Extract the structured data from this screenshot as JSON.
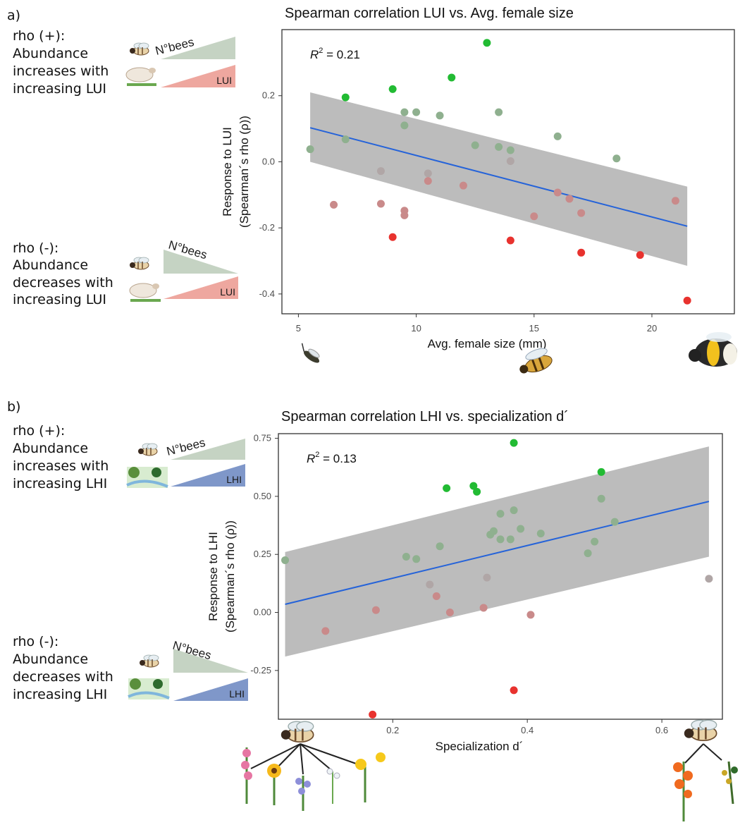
{
  "panel_labels": [
    "a)",
    "b)"
  ],
  "legends": {
    "a": {
      "pos": {
        "head": "rho (+):",
        "lines": [
          "Abundance",
          "increases with",
          "increasing LUI"
        ]
      },
      "neg": {
        "head": "rho (-):",
        "lines": [
          "Abundance",
          "decreases with",
          "increasing LUI"
        ]
      },
      "bees_label": "N°bees",
      "driver_label": "LUI"
    },
    "b": {
      "pos": {
        "head": "rho (+):",
        "lines": [
          "Abundance",
          "increases with",
          "increasing LHI"
        ]
      },
      "neg": {
        "head": "rho (-):",
        "lines": [
          "Abundance",
          "decreases with",
          "increasing LHI"
        ]
      },
      "bees_label": "N°bees",
      "driver_label": "LHI"
    }
  },
  "colors": {
    "positive_strong": "#22bb33",
    "positive_weak": "#8fb08f",
    "neutral": "#b0a6a6",
    "negative_weak": "#c98a8a",
    "negative_strong": "#e8322e",
    "fit_line": "#2563d9",
    "ci_band": "#b5b5b5",
    "bees_wedge": "#c5d3c3",
    "lui_wedge": "#eea79f",
    "lhi_wedge": "#7f97c9"
  },
  "chart_data": [
    {
      "type": "scatter",
      "title": "Spearman correlation LUI vs. Avg. female size",
      "xlabel": "Avg. female size (mm)",
      "ylabel": [
        "Response to LUI",
        "(Spearman´s rho (ρ))"
      ],
      "annotation": {
        "r2_label": "R",
        "r2_sup": "2",
        "r2_value": " = 0.21"
      },
      "xlim": [
        4.3,
        23.5
      ],
      "ylim": [
        -0.46,
        0.4
      ],
      "xticks": [
        5,
        10,
        15,
        20
      ],
      "yticks": [
        -0.4,
        -0.2,
        0.0,
        0.2
      ],
      "ytick_labels": [
        "-0.4",
        "-0.2",
        "0.0",
        "0.2"
      ],
      "grid": false,
      "fit": {
        "x": [
          5.5,
          21.5
        ],
        "y": [
          0.103,
          -0.195
        ]
      },
      "ci": {
        "upper": [
          0.21,
          -0.075
        ],
        "lower": [
          0.0,
          -0.315
        ]
      },
      "points": [
        {
          "x": 13.0,
          "y": 0.36,
          "cat": "positive_strong"
        },
        {
          "x": 11.5,
          "y": 0.255,
          "cat": "positive_strong"
        },
        {
          "x": 9.0,
          "y": 0.22,
          "cat": "positive_strong"
        },
        {
          "x": 7.0,
          "y": 0.195,
          "cat": "positive_strong"
        },
        {
          "x": 9.5,
          "y": 0.15,
          "cat": "positive_weak"
        },
        {
          "x": 10.0,
          "y": 0.15,
          "cat": "positive_weak"
        },
        {
          "x": 11.0,
          "y": 0.14,
          "cat": "positive_weak"
        },
        {
          "x": 13.5,
          "y": 0.15,
          "cat": "positive_weak"
        },
        {
          "x": 9.5,
          "y": 0.11,
          "cat": "positive_weak"
        },
        {
          "x": 16.0,
          "y": 0.077,
          "cat": "positive_weak"
        },
        {
          "x": 7.0,
          "y": 0.068,
          "cat": "positive_weak"
        },
        {
          "x": 12.5,
          "y": 0.05,
          "cat": "positive_weak"
        },
        {
          "x": 13.5,
          "y": 0.045,
          "cat": "positive_weak"
        },
        {
          "x": 14.0,
          "y": 0.035,
          "cat": "positive_weak"
        },
        {
          "x": 5.5,
          "y": 0.038,
          "cat": "positive_weak"
        },
        {
          "x": 18.5,
          "y": 0.01,
          "cat": "positive_weak"
        },
        {
          "x": 14.0,
          "y": 0.002,
          "cat": "neutral"
        },
        {
          "x": 8.5,
          "y": -0.028,
          "cat": "neutral"
        },
        {
          "x": 10.5,
          "y": -0.035,
          "cat": "neutral"
        },
        {
          "x": 10.5,
          "y": -0.058,
          "cat": "negative_weak"
        },
        {
          "x": 12.0,
          "y": -0.072,
          "cat": "negative_weak"
        },
        {
          "x": 16.0,
          "y": -0.093,
          "cat": "negative_weak"
        },
        {
          "x": 16.5,
          "y": -0.112,
          "cat": "negative_weak"
        },
        {
          "x": 21.0,
          "y": -0.118,
          "cat": "negative_weak"
        },
        {
          "x": 6.5,
          "y": -0.13,
          "cat": "negative_weak"
        },
        {
          "x": 8.5,
          "y": -0.127,
          "cat": "negative_weak"
        },
        {
          "x": 9.5,
          "y": -0.148,
          "cat": "negative_weak"
        },
        {
          "x": 9.5,
          "y": -0.162,
          "cat": "negative_weak"
        },
        {
          "x": 17.0,
          "y": -0.155,
          "cat": "negative_weak"
        },
        {
          "x": 15.0,
          "y": -0.165,
          "cat": "negative_weak"
        },
        {
          "x": 9.0,
          "y": -0.228,
          "cat": "negative_strong"
        },
        {
          "x": 14.0,
          "y": -0.238,
          "cat": "negative_strong"
        },
        {
          "x": 17.0,
          "y": -0.275,
          "cat": "negative_strong"
        },
        {
          "x": 19.5,
          "y": -0.282,
          "cat": "negative_strong"
        },
        {
          "x": 21.5,
          "y": -0.42,
          "cat": "negative_strong"
        }
      ]
    },
    {
      "type": "scatter",
      "title": "Spearman correlation LHI vs. specialization d´",
      "xlabel": "Specialization d´",
      "ylabel": [
        "Response to LHI",
        "(Spearman´s rho (ρ))"
      ],
      "annotation": {
        "r2_label": "R",
        "r2_sup": "2",
        "r2_value": " = 0.13"
      },
      "xlim": [
        0.03,
        0.69
      ],
      "ylim": [
        -0.46,
        0.77
      ],
      "xticks": [
        0.2,
        0.4,
        0.6
      ],
      "yticks": [
        -0.25,
        0.0,
        0.25,
        0.5,
        0.75
      ],
      "ytick_labels": [
        "-0.25",
        "0.00",
        "0.25",
        "0.50",
        "0.75"
      ],
      "grid": false,
      "fit": {
        "x": [
          0.04,
          0.67
        ],
        "y": [
          0.035,
          0.478
        ]
      },
      "ci": {
        "upper": [
          0.26,
          0.715
        ],
        "lower": [
          -0.19,
          0.24
        ]
      },
      "points": [
        {
          "x": 0.38,
          "y": 0.73,
          "cat": "positive_strong"
        },
        {
          "x": 0.51,
          "y": 0.605,
          "cat": "positive_strong"
        },
        {
          "x": 0.28,
          "y": 0.535,
          "cat": "positive_strong"
        },
        {
          "x": 0.32,
          "y": 0.545,
          "cat": "positive_strong"
        },
        {
          "x": 0.325,
          "y": 0.52,
          "cat": "positive_strong"
        },
        {
          "x": 0.51,
          "y": 0.49,
          "cat": "positive_weak"
        },
        {
          "x": 0.38,
          "y": 0.44,
          "cat": "positive_weak"
        },
        {
          "x": 0.36,
          "y": 0.425,
          "cat": "positive_weak"
        },
        {
          "x": 0.53,
          "y": 0.39,
          "cat": "positive_weak"
        },
        {
          "x": 0.39,
          "y": 0.36,
          "cat": "positive_weak"
        },
        {
          "x": 0.35,
          "y": 0.35,
          "cat": "positive_weak"
        },
        {
          "x": 0.42,
          "y": 0.34,
          "cat": "positive_weak"
        },
        {
          "x": 0.345,
          "y": 0.335,
          "cat": "positive_weak"
        },
        {
          "x": 0.36,
          "y": 0.315,
          "cat": "positive_weak"
        },
        {
          "x": 0.375,
          "y": 0.315,
          "cat": "positive_weak"
        },
        {
          "x": 0.5,
          "y": 0.305,
          "cat": "positive_weak"
        },
        {
          "x": 0.27,
          "y": 0.285,
          "cat": "positive_weak"
        },
        {
          "x": 0.49,
          "y": 0.255,
          "cat": "positive_weak"
        },
        {
          "x": 0.22,
          "y": 0.24,
          "cat": "positive_weak"
        },
        {
          "x": 0.235,
          "y": 0.23,
          "cat": "positive_weak"
        },
        {
          "x": 0.04,
          "y": 0.225,
          "cat": "positive_weak"
        },
        {
          "x": 0.34,
          "y": 0.15,
          "cat": "neutral"
        },
        {
          "x": 0.67,
          "y": 0.145,
          "cat": "neutral"
        },
        {
          "x": 0.255,
          "y": 0.12,
          "cat": "neutral"
        },
        {
          "x": 0.265,
          "y": 0.07,
          "cat": "negative_weak"
        },
        {
          "x": 0.335,
          "y": 0.02,
          "cat": "negative_weak"
        },
        {
          "x": 0.175,
          "y": 0.01,
          "cat": "negative_weak"
        },
        {
          "x": 0.285,
          "y": 0.0,
          "cat": "negative_weak"
        },
        {
          "x": 0.405,
          "y": -0.01,
          "cat": "negative_weak"
        },
        {
          "x": 0.1,
          "y": -0.08,
          "cat": "negative_weak"
        },
        {
          "x": 0.38,
          "y": -0.335,
          "cat": "negative_strong"
        },
        {
          "x": 0.17,
          "y": -0.44,
          "cat": "negative_strong"
        }
      ]
    }
  ],
  "illustrations": [
    "bee-icon",
    "sheep-icon",
    "habitat-icon",
    "small-bee-icon",
    "honeybee-icon",
    "bumblebee-icon",
    "flowers-icon",
    "specialist-plant-icon"
  ]
}
